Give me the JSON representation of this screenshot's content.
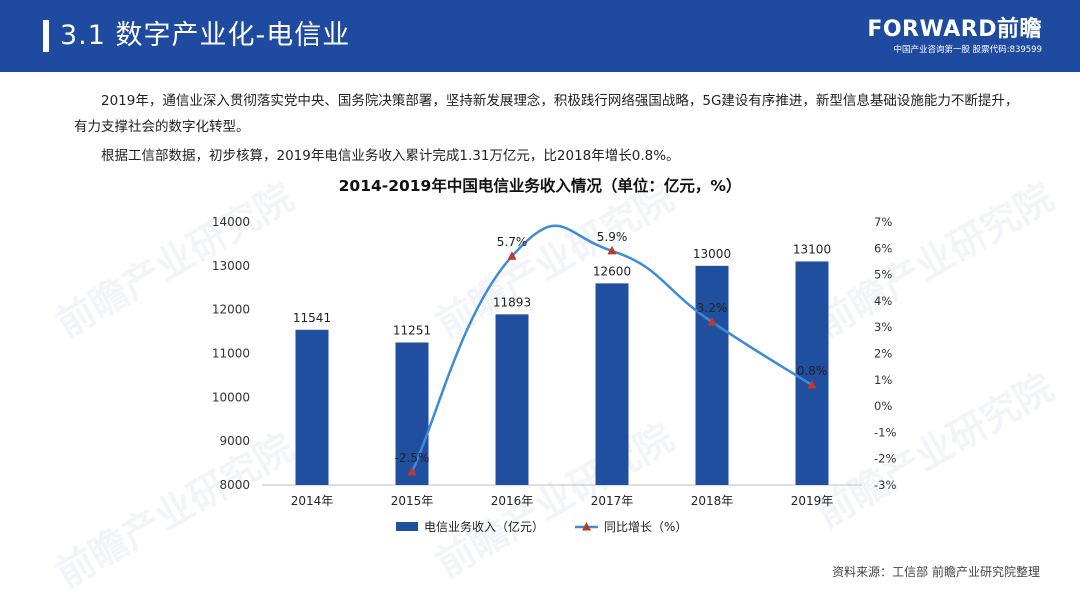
{
  "header": {
    "title": "3.1 数字产业化-电信业"
  },
  "brand": {
    "name": "FORWARD前瞻",
    "sub": "中国产业咨询第一股 股票代码:839599"
  },
  "text": {
    "p1": "2019年，通信业深入贯彻落实党中央、国务院决策部署，坚持新发展理念，积极践行网络强国战略，5G建设有序推进，新型信息基础设施能力不断提升，有力支撑社会的数字化转型。",
    "p2": "根据工信部数据，初步核算，2019年电信业务收入累计完成1.31万亿元，比2018年增长0.8%。"
  },
  "watermark": "前瞻产业研究院",
  "source": "资料来源：工信部 前瞻产业研究院整理",
  "colors": {
    "header": "#1e4aa0",
    "bar": "#1f4f9e",
    "line": "#3b8bd8",
    "marker": "#c0392b"
  },
  "chart_data": {
    "type": "bar+line",
    "title": "2014-2019年中国电信业务收入情况（单位：亿元，%）",
    "categories": [
      "2014年",
      "2015年",
      "2016年",
      "2017年",
      "2018年",
      "2019年"
    ],
    "series": [
      {
        "name": "电信业务收入（亿元）",
        "type": "bar",
        "axis": "left",
        "values": [
          11541,
          11251,
          11893,
          12600,
          13000,
          13100
        ],
        "labels": [
          "11541",
          "11251",
          "11893",
          "12600",
          "13000",
          "13100"
        ]
      },
      {
        "name": "同比增长（%）",
        "type": "line",
        "axis": "right",
        "values": [
          null,
          -2.5,
          5.7,
          5.9,
          3.2,
          0.8
        ],
        "labels": [
          "",
          "-2.5%",
          "5.7%",
          "5.9%",
          "3.2%",
          "0.8%"
        ]
      }
    ],
    "ylim_left": [
      8000,
      14000
    ],
    "yticks_left": [
      "8000",
      "9000",
      "10000",
      "11000",
      "12000",
      "13000",
      "14000"
    ],
    "ylim_right": [
      -3,
      7
    ],
    "yticks_right": [
      "-3%",
      "-2%",
      "-1%",
      "0%",
      "1%",
      "2%",
      "3%",
      "4%",
      "5%",
      "6%",
      "7%"
    ],
    "legend_position": "bottom"
  }
}
